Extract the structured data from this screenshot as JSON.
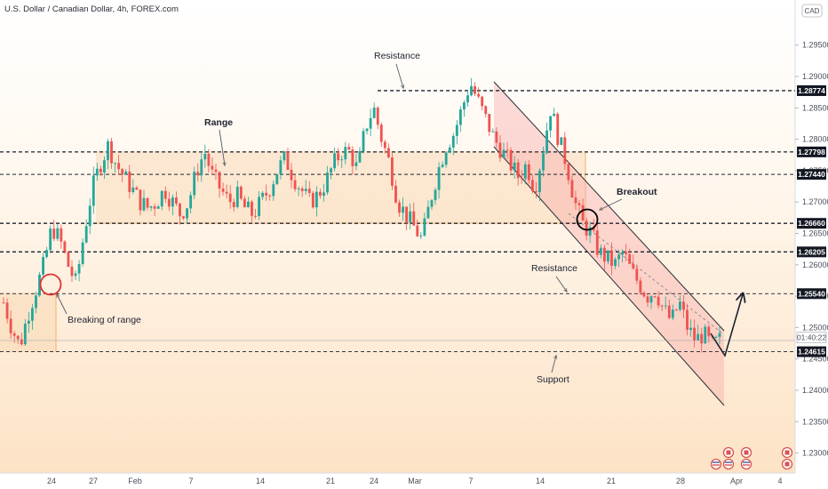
{
  "header": {
    "symbol_title": "U.S. Dollar / Canadian Dollar, 4h, FOREX.com"
  },
  "currency_badge": "CAD",
  "chart_data": {
    "type": "candlestick",
    "title": "U.S. Dollar / Canadian Dollar, 4h, FOREX.com",
    "ylim": [
      1.2275,
      1.297
    ],
    "y_ticks": [
      "1.23000",
      "1.23500",
      "1.24000",
      "1.24500",
      "1.25000",
      "1.25500",
      "1.26000",
      "1.26500",
      "1.27000",
      "1.27500",
      "1.28000",
      "1.28500",
      "1.29000",
      "1.29500"
    ],
    "x_ticks": [
      "24",
      "27",
      "Feb",
      "7",
      "14",
      "21",
      "24",
      "Mar",
      "7",
      "14",
      "21",
      "28",
      "Apr",
      "4"
    ],
    "levels": [
      {
        "value": 1.28774,
        "label": "1.28774"
      },
      {
        "value": 1.27798,
        "label": "1.27798"
      },
      {
        "value": 1.2744,
        "label": "1.27440"
      },
      {
        "value": 1.2666,
        "label": "1.26660"
      },
      {
        "value": 1.26205,
        "label": "1.26205"
      },
      {
        "value": 1.2554,
        "label": "1.25540"
      },
      {
        "value": 1.24615,
        "label": "1.24615"
      }
    ],
    "current_price_label": "01:40:22",
    "current_price": 1.2484,
    "annotations": {
      "resistance_top": "Resistance",
      "range": "Range",
      "breaking": "Breaking of range",
      "breakout": "Breakout",
      "resistance_mid": "Resistance",
      "support": "Support"
    },
    "path": [
      1.254,
      1.25,
      1.247,
      1.252,
      1.256,
      1.26,
      1.266,
      1.264,
      1.26,
      1.257,
      1.265,
      1.272,
      1.276,
      1.279,
      1.276,
      1.274,
      1.272,
      1.27,
      1.269,
      1.27,
      1.272,
      1.27,
      1.268,
      1.27,
      1.275,
      1.278,
      1.274,
      1.272,
      1.27,
      1.271,
      1.269,
      1.268,
      1.27,
      1.272,
      1.275,
      1.277,
      1.274,
      1.272,
      1.27,
      1.271,
      1.273,
      1.276,
      1.278,
      1.278,
      1.275,
      1.282,
      1.285,
      1.28,
      1.276,
      1.27,
      1.268,
      1.266,
      1.264,
      1.27,
      1.275,
      1.279,
      1.281,
      1.285,
      1.289,
      1.286,
      1.283,
      1.28,
      1.278,
      1.276,
      1.274,
      1.276,
      1.272,
      1.278,
      1.285,
      1.28,
      1.276,
      1.27,
      1.2665,
      1.265,
      1.262,
      1.261,
      1.26,
      1.262,
      1.259,
      1.257,
      1.255,
      1.256,
      1.253,
      1.251,
      1.254,
      1.25,
      1.248,
      1.249,
      1.247,
      1.248
    ]
  }
}
